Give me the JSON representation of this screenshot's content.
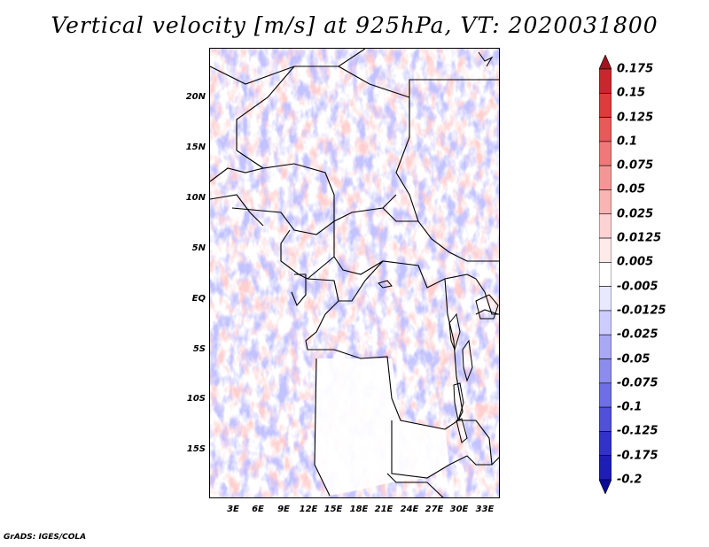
{
  "title": "Vertical velocity [m/s] at 925hPa, VT: 2020031800",
  "map": {
    "lat_labels": [
      "20N",
      "15N",
      "10N",
      "5N",
      "EQ",
      "5S",
      "10S",
      "15S"
    ],
    "lon_labels": [
      "3E",
      "6E",
      "9E",
      "12E",
      "15E",
      "18E",
      "21E",
      "24E",
      "27E",
      "30E",
      "33E"
    ]
  },
  "colorbar": {
    "levels": [
      "0.175",
      "0.15",
      "0.125",
      "0.1",
      "0.075",
      "0.05",
      "0.025",
      "0.0125",
      "0.005",
      "-0.005",
      "-0.0125",
      "-0.025",
      "-0.05",
      "-0.075",
      "-0.1",
      "-0.125",
      "-0.175",
      "-0.2"
    ],
    "colors": [
      "#a0141e",
      "#c8282d",
      "#dc3c3c",
      "#e65a5a",
      "#f07878",
      "#f59696",
      "#fab4b4",
      "#fdd2d2",
      "#ffeaea",
      "#ffffff",
      "#e8e8ff",
      "#ccccff",
      "#a8a8f5",
      "#8c8cee",
      "#6e6ee6",
      "#5050d8",
      "#3232c8",
      "#1e1eb4",
      "#0a0a96"
    ]
  },
  "footer": "GrADS: IGES/COLA"
}
